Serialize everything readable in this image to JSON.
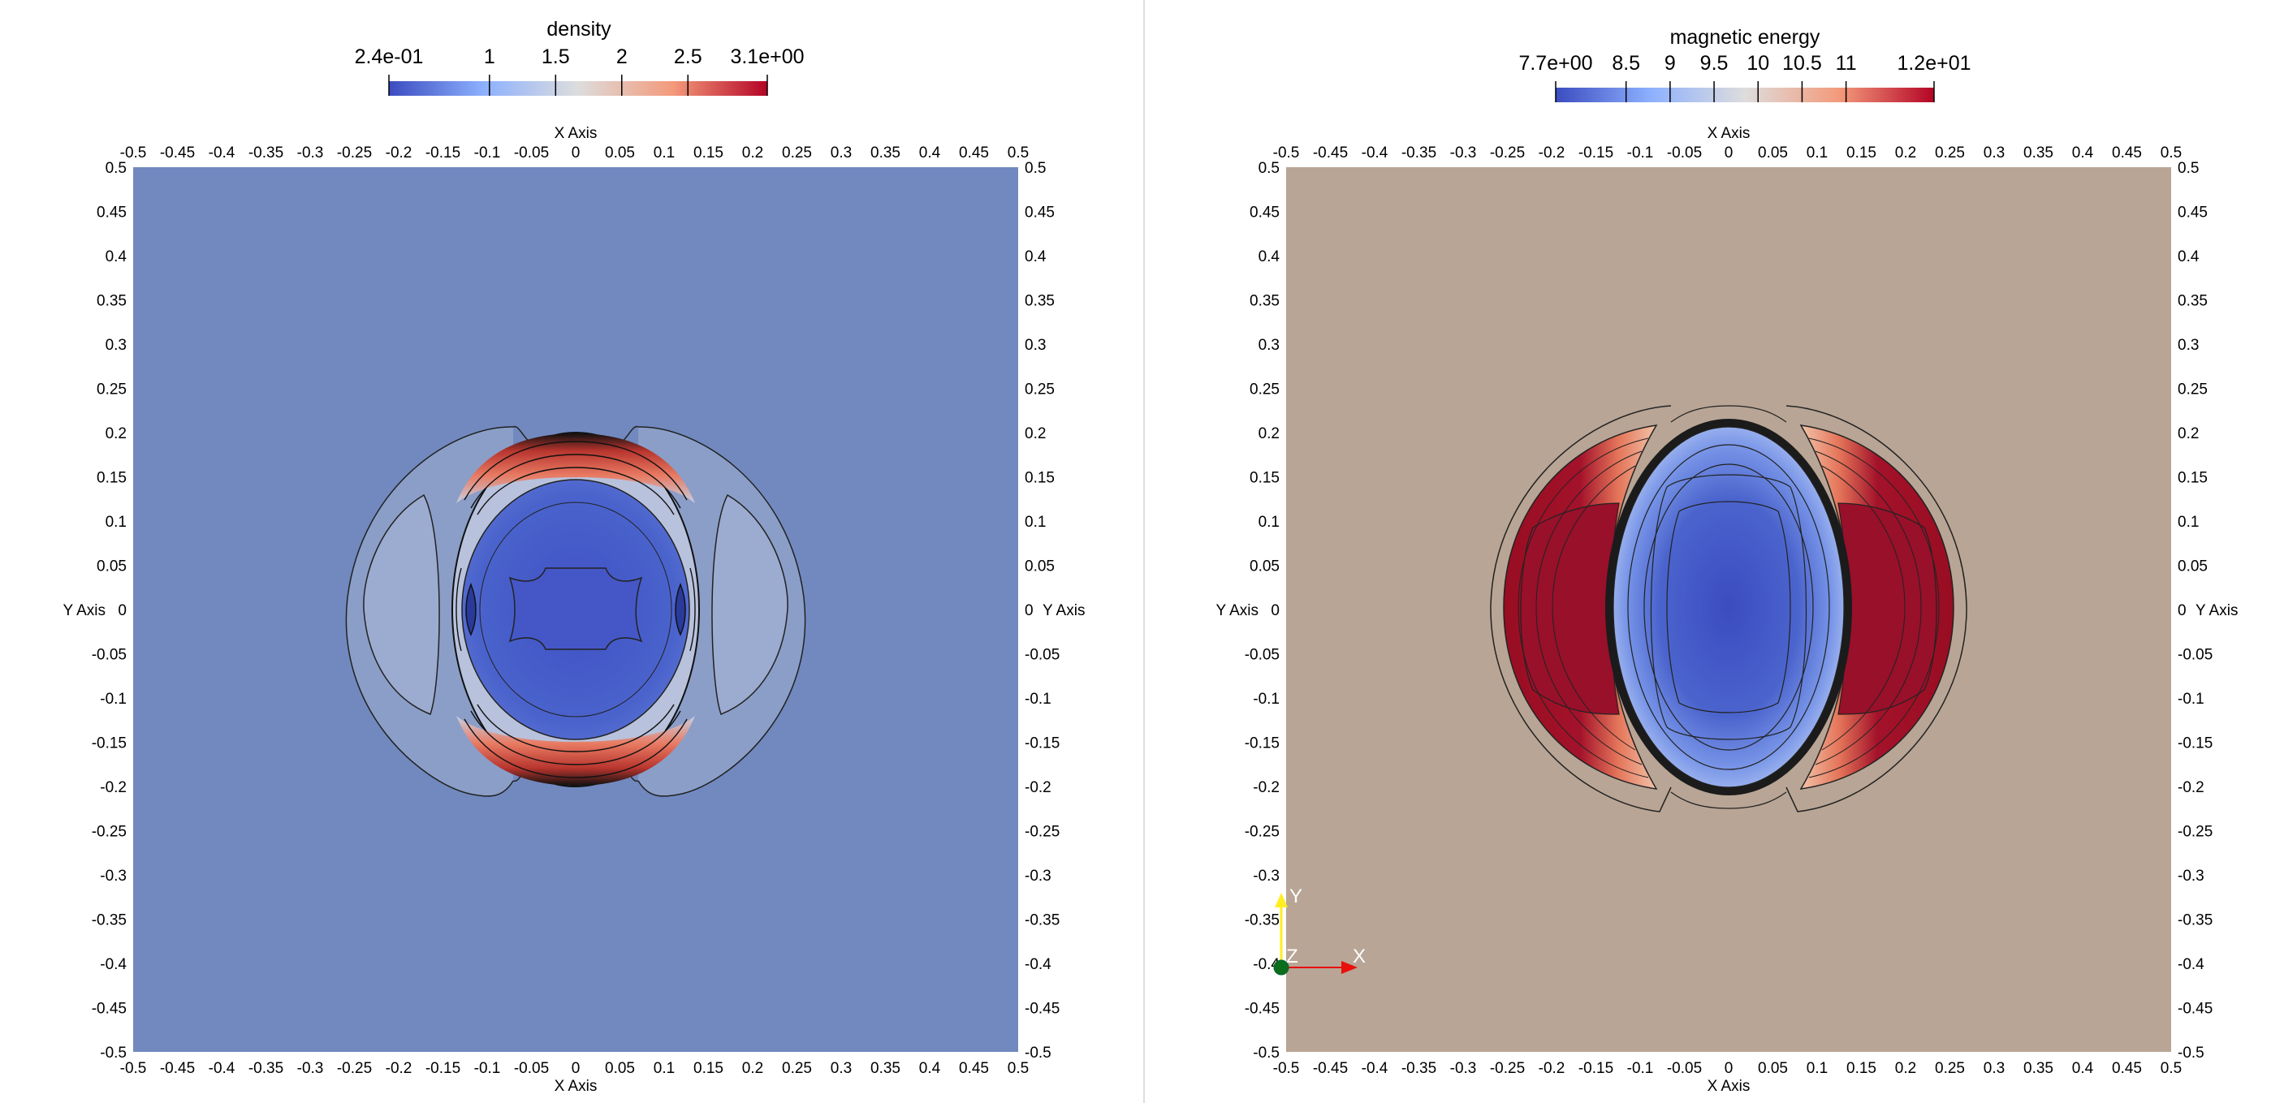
{
  "panels": [
    {
      "id": "density",
      "colorbar": {
        "title": "density",
        "labels": [
          "2.4e-01",
          "1",
          "1.5",
          "2",
          "2.5",
          "3.1e+00"
        ],
        "values": [
          0.24,
          1,
          1.5,
          2,
          2.5,
          3.1
        ],
        "range": [
          0.24,
          3.1
        ]
      },
      "background_color": "#7189bf",
      "x_axis_title": "X Axis",
      "y_axis_title": "Y Axis"
    },
    {
      "id": "magnetic-energy",
      "colorbar": {
        "title": "magnetic energy",
        "labels": [
          "7.7e+00",
          "8.5",
          "9",
          "9.5",
          "10",
          "10.5",
          "11",
          "1.2e+01"
        ],
        "values": [
          7.7,
          8.5,
          9,
          9.5,
          10,
          10.5,
          11,
          12
        ],
        "range": [
          7.7,
          12
        ]
      },
      "background_color": "#b8a595",
      "x_axis_title": "X Axis",
      "y_axis_title": "Y Axis"
    }
  ],
  "colormap": {
    "name": "Cool to Warm",
    "low": "#3b4cc0",
    "mid": "#dddddd",
    "high": "#b40426"
  },
  "ticks": [
    "-0.5",
    "-0.45",
    "-0.4",
    "-0.35",
    "-0.3",
    "-0.25",
    "-0.2",
    "-0.15",
    "-0.1",
    "-0.05",
    "0",
    "0.05",
    "0.1",
    "0.15",
    "0.2",
    "0.25",
    "0.3",
    "0.35",
    "0.4",
    "0.45",
    "0.5"
  ],
  "orientation_axes": {
    "x_label": "X",
    "y_label": "Y",
    "z_label": "Z",
    "x_color": "#e8100c",
    "y_color": "#ffee22",
    "z_color": "#0b6e1c"
  },
  "chart_data": [
    {
      "type": "heatmap",
      "title": "density",
      "xlabel": "X Axis",
      "ylabel": "Y Axis",
      "xlim": [
        -0.5,
        0.5
      ],
      "ylim": [
        -0.5,
        0.5
      ],
      "colorbar_range": [
        0.24,
        3.1
      ],
      "colorbar_ticks": [
        1,
        1.5,
        2,
        2.5
      ],
      "contours": true
    },
    {
      "type": "heatmap",
      "title": "magnetic energy",
      "xlabel": "X Axis",
      "ylabel": "Y Axis",
      "xlim": [
        -0.5,
        0.5
      ],
      "ylim": [
        -0.5,
        0.5
      ],
      "colorbar_range": [
        7.7,
        12
      ],
      "colorbar_ticks": [
        8.5,
        9,
        9.5,
        10,
        10.5,
        11
      ],
      "contours": true
    }
  ]
}
